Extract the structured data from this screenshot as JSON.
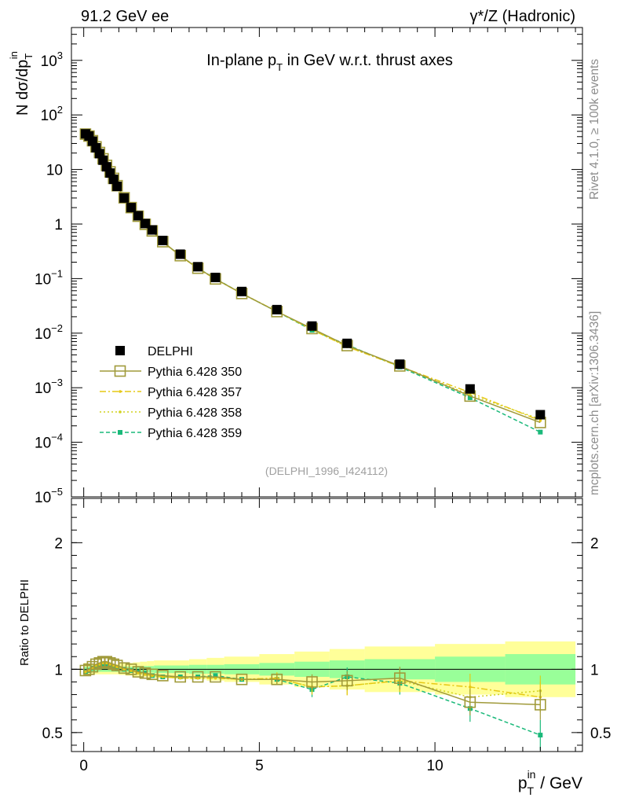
{
  "header": {
    "left_label": "91.2 GeV ee",
    "right_label": "γ*/Z (Hadronic)",
    "side_label_top": "Rivet 4.1.0, ≥ 100k events",
    "side_label_bottom": "mcplots.cern.ch [arXiv:1306.3436]"
  },
  "chart_data": {
    "type": "line",
    "title": "In-plane pT in GeV w.r.t. thrust axes",
    "title_parts": {
      "main": "In-plane p",
      "sub": "T",
      "tail": " in GeV w.r.t. thrust axes"
    },
    "ylabel": "N  dσ/dp",
    "ylabel_sub": "T",
    "ylabel_sup": "in",
    "xlabel": "p",
    "xlabel_sub": "T",
    "xlabel_sup": "in",
    "xlabel_tail": " / GeV",
    "ratio_ylabel": "Ratio to DELPHI",
    "analysis_id": "(DELPHI_1996_I424112)",
    "xlim": [
      -0.35,
      14.2
    ],
    "ylim": [
      1e-05,
      4000
    ],
    "ratio_ylim": [
      0.35,
      2.35
    ],
    "x_ticks": [
      0,
      5,
      10
    ],
    "y_ticks": [
      {
        "v": 1e-05,
        "base": "10",
        "exp": "−5"
      },
      {
        "v": 0.0001,
        "base": "10",
        "exp": "−4"
      },
      {
        "v": 0.001,
        "base": "10",
        "exp": "−3"
      },
      {
        "v": 0.01,
        "base": "10",
        "exp": "−2"
      },
      {
        "v": 0.1,
        "base": "10",
        "exp": "−1"
      },
      {
        "v": 1,
        "base": "1",
        "exp": ""
      },
      {
        "v": 10,
        "base": "10",
        "exp": ""
      },
      {
        "v": 100,
        "base": "10",
        "exp": "2"
      },
      {
        "v": 1000,
        "base": "10",
        "exp": "3"
      }
    ],
    "ratio_ticks": [
      {
        "v": 0.5,
        "label": "0.5"
      },
      {
        "v": 1,
        "label": "1"
      },
      {
        "v": 2,
        "label": "2"
      }
    ],
    "x": [
      0.05,
      0.15,
      0.25,
      0.35,
      0.45,
      0.55,
      0.65,
      0.75,
      0.85,
      0.95,
      1.15,
      1.35,
      1.55,
      1.75,
      1.95,
      2.25,
      2.75,
      3.25,
      3.75,
      4.5,
      5.5,
      6.5,
      7.5,
      9.0,
      11.0,
      13.0
    ],
    "bin_edges": [
      0,
      0.1,
      0.2,
      0.3,
      0.4,
      0.5,
      0.6,
      0.7,
      0.8,
      0.9,
      1.0,
      1.2,
      1.4,
      1.6,
      1.8,
      2.0,
      2.5,
      3.0,
      3.5,
      4.0,
      5.0,
      6.0,
      7.0,
      8.0,
      10.0,
      12.0,
      14.0
    ],
    "band_inner": [
      0.02,
      0.02,
      0.02,
      0.02,
      0.02,
      0.02,
      0.02,
      0.02,
      0.02,
      0.02,
      0.02,
      0.02,
      0.025,
      0.025,
      0.025,
      0.03,
      0.03,
      0.035,
      0.035,
      0.04,
      0.05,
      0.06,
      0.07,
      0.08,
      0.1,
      0.12
    ],
    "band_outer": [
      0.05,
      0.045,
      0.04,
      0.04,
      0.04,
      0.04,
      0.04,
      0.04,
      0.04,
      0.04,
      0.045,
      0.05,
      0.055,
      0.06,
      0.065,
      0.07,
      0.07,
      0.08,
      0.09,
      0.1,
      0.12,
      0.14,
      0.16,
      0.18,
      0.2,
      0.22
    ],
    "series": [
      {
        "name": "DELPHI",
        "color": "#000000",
        "dash": "",
        "marker": "filled-square",
        "values": [
          45,
          41,
          33,
          25,
          19.5,
          14.8,
          11.2,
          8.6,
          6.6,
          4.9,
          3.0,
          2.0,
          1.42,
          1.02,
          0.78,
          0.5,
          0.28,
          0.165,
          0.105,
          0.058,
          0.027,
          0.0135,
          0.0065,
          0.0027,
          0.00095,
          0.00032
        ]
      },
      {
        "name": "Pythia 6.428 350",
        "color": "#a09a3a",
        "dash": "",
        "marker": "open-square",
        "ratio": [
          0.99,
          1.0,
          1.02,
          1.04,
          1.05,
          1.06,
          1.06,
          1.05,
          1.04,
          1.03,
          1.01,
          1.0,
          0.98,
          0.97,
          0.96,
          0.95,
          0.94,
          0.94,
          0.94,
          0.92,
          0.92,
          0.9,
          0.91,
          0.93,
          0.74,
          0.72
        ]
      },
      {
        "name": "Pythia 6.428 357",
        "color": "#e6c814",
        "dash": "8,3,2,3",
        "marker": "small-dot",
        "ratio": [
          0.98,
          0.99,
          1.01,
          1.03,
          1.04,
          1.05,
          1.05,
          1.04,
          1.03,
          1.02,
          1.0,
          0.99,
          0.97,
          0.96,
          0.95,
          0.94,
          0.93,
          0.93,
          0.93,
          0.92,
          0.93,
          0.86,
          0.87,
          0.91,
          0.86,
          0.78
        ]
      },
      {
        "name": "Pythia 6.428 358",
        "color": "#d2d21e",
        "dash": "2,3",
        "marker": "small-dot",
        "ratio": [
          0.98,
          0.99,
          1.01,
          1.03,
          1.04,
          1.05,
          1.05,
          1.04,
          1.03,
          1.02,
          1.0,
          0.99,
          0.97,
          0.96,
          0.95,
          0.94,
          0.93,
          0.93,
          0.93,
          0.92,
          0.93,
          0.86,
          0.87,
          0.91,
          0.78,
          0.83
        ]
      },
      {
        "name": "Pythia 6.428 359",
        "color": "#1ab97a",
        "dash": "5,3",
        "marker": "small-square",
        "ratio": [
          0.98,
          0.99,
          1.01,
          1.02,
          1.03,
          1.04,
          1.04,
          1.03,
          1.02,
          1.01,
          1.0,
          0.99,
          0.98,
          0.97,
          0.95,
          0.94,
          0.94,
          0.94,
          0.95,
          0.92,
          0.92,
          0.84,
          0.94,
          0.89,
          0.69,
          0.48
        ]
      }
    ]
  }
}
